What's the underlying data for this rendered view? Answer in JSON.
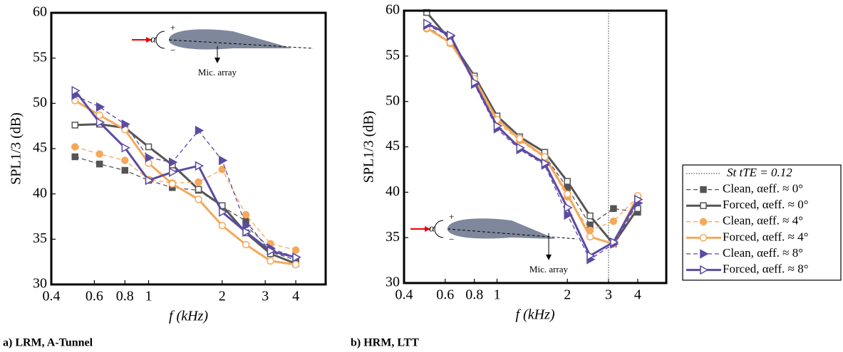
{
  "chart_data": [
    {
      "type": "line",
      "caption": "a) LRM, A-Tunnel",
      "x_label": "f (kHz)",
      "y_label": "SPL1/3 (dB)",
      "log_x": true,
      "xlim": [
        0.4,
        5.3
      ],
      "ylim": [
        30,
        60
      ],
      "xticks": [
        0.4,
        0.6,
        0.8,
        1,
        2,
        3,
        4
      ],
      "yticks": [
        30,
        35,
        40,
        45,
        50,
        55,
        60
      ],
      "annotations": [
        "α",
        "+",
        "−",
        "Mic. array"
      ],
      "x": [
        0.5,
        0.63,
        0.8,
        1,
        1.25,
        1.6,
        2,
        2.5,
        3.15,
        4
      ],
      "series": [
        {
          "name": "Clean, αeff. ≈ 0°",
          "color": "#555555",
          "dashed": true,
          "marker": "square",
          "filled": true,
          "values": [
            44.1,
            43.3,
            42.6,
            41.5,
            40.7,
            40.4,
            38.6,
            37.0,
            33.6,
            32.7
          ]
        },
        {
          "name": "Forced, αeff. ≈ 0°",
          "color": "#555555",
          "dashed": false,
          "marker": "square",
          "filled": false,
          "values": [
            47.6,
            47.7,
            47.3,
            45.2,
            43.2,
            40.5,
            38.7,
            35.7,
            33.4,
            32.3
          ]
        },
        {
          "name": "Clean, αeff. ≈ 4°",
          "color": "#f5a85a",
          "dashed": true,
          "marker": "circle",
          "filled": true,
          "values": [
            45.2,
            44.4,
            43.7,
            41.6,
            41.2,
            41.3,
            42.7,
            37.7,
            34.5,
            33.8
          ]
        },
        {
          "name": "Forced, αeff. ≈ 4°",
          "color": "#f5a85a",
          "dashed": false,
          "marker": "circle",
          "filled": false,
          "values": [
            50.3,
            48.7,
            47.1,
            43.4,
            41.1,
            39.4,
            36.5,
            34.4,
            32.6,
            32.2
          ]
        },
        {
          "name": "Clean, αeff. ≈ 8°",
          "color": "#5b4ba3",
          "dashed": true,
          "marker": "triangle",
          "filled": true,
          "values": [
            50.9,
            49.6,
            47.7,
            44.0,
            43.5,
            47.0,
            43.7,
            36.5,
            34.0,
            33.0
          ]
        },
        {
          "name": "Forced, αeff. ≈ 8°",
          "color": "#5b4ba3",
          "dashed": false,
          "marker": "triangle",
          "filled": false,
          "values": [
            51.4,
            47.9,
            45.1,
            41.5,
            42.4,
            43.1,
            38.0,
            35.8,
            33.7,
            33.0
          ]
        }
      ]
    },
    {
      "type": "line",
      "caption": "b) HRM, LTT",
      "x_label": "f (kHz)",
      "y_label": "SPL1/3 (dB)",
      "log_x": true,
      "xlim": [
        0.4,
        5.3
      ],
      "ylim": [
        30,
        60
      ],
      "xticks": [
        0.4,
        0.6,
        0.8,
        1,
        2,
        3,
        4
      ],
      "yticks": [
        30,
        35,
        40,
        45,
        50,
        55,
        60
      ],
      "annotations": [
        "α",
        "+",
        "−",
        "Mic. array"
      ],
      "vline": {
        "x": 3,
        "name": "St tTE = 0.12",
        "color": "#777777"
      },
      "x": [
        0.5,
        0.63,
        0.8,
        1,
        1.25,
        1.6,
        2,
        2.5,
        3.15,
        4
      ],
      "series": [
        {
          "name": "Clean, αeff. ≈ 0°",
          "color": "#555555",
          "dashed": true,
          "marker": "square",
          "filled": true,
          "values": [
            58.3,
            56.5,
            52.5,
            48.0,
            45.8,
            44.0,
            40.5,
            36.4,
            38.2,
            37.8
          ]
        },
        {
          "name": "Forced, αeff. ≈ 0°",
          "color": "#555555",
          "dashed": false,
          "marker": "square",
          "filled": false,
          "values": [
            59.8,
            56.8,
            52.8,
            48.4,
            46.1,
            44.4,
            41.2,
            37.4,
            34.3,
            38.2
          ]
        },
        {
          "name": "Clean, αeff. ≈ 4°",
          "color": "#f5a85a",
          "dashed": true,
          "marker": "circle",
          "filled": true,
          "values": [
            58.0,
            56.4,
            52.3,
            47.7,
            45.7,
            43.8,
            39.5,
            35.8,
            36.8,
            39.5
          ]
        },
        {
          "name": "Forced, αeff. ≈ 4°",
          "color": "#f5a85a",
          "dashed": false,
          "marker": "circle",
          "filled": false,
          "values": [
            58.1,
            56.5,
            52.5,
            48.0,
            45.9,
            43.9,
            39.8,
            35.1,
            34.3,
            39.6
          ]
        },
        {
          "name": "Clean, αeff. ≈ 8°",
          "color": "#5b4ba3",
          "dashed": true,
          "marker": "triangle",
          "filled": true,
          "values": [
            58.4,
            57.2,
            51.9,
            47.0,
            44.7,
            43.0,
            37.5,
            32.6,
            34.3,
            38.8
          ]
        },
        {
          "name": "Forced, αeff. ≈ 8°",
          "color": "#5b4ba3",
          "dashed": false,
          "marker": "triangle",
          "filled": false,
          "values": [
            58.6,
            57.3,
            52.1,
            47.3,
            44.9,
            43.2,
            38.3,
            33.0,
            34.5,
            39.2
          ]
        }
      ]
    }
  ]
}
